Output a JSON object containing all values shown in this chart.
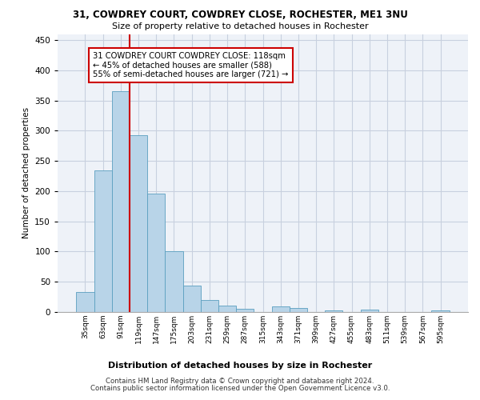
{
  "title1": "31, COWDREY COURT, COWDREY CLOSE, ROCHESTER, ME1 3NU",
  "title2": "Size of property relative to detached houses in Rochester",
  "xlabel": "Distribution of detached houses by size in Rochester",
  "ylabel": "Number of detached properties",
  "categories": [
    "35sqm",
    "63sqm",
    "91sqm",
    "119sqm",
    "147sqm",
    "175sqm",
    "203sqm",
    "231sqm",
    "259sqm",
    "287sqm",
    "315sqm",
    "343sqm",
    "371sqm",
    "399sqm",
    "427sqm",
    "455sqm",
    "483sqm",
    "511sqm",
    "539sqm",
    "567sqm",
    "595sqm"
  ],
  "values": [
    33,
    234,
    365,
    293,
    196,
    101,
    44,
    20,
    11,
    5,
    0,
    9,
    6,
    0,
    3,
    0,
    4,
    0,
    0,
    0,
    3
  ],
  "bar_color": "#b8d4e8",
  "bar_edge_color": "#5a9fc0",
  "bar_width": 1.0,
  "vline_x": 2.5,
  "vline_color": "#cc0000",
  "annotation_text": "31 COWDREY COURT COWDREY CLOSE: 118sqm\n← 45% of detached houses are smaller (588)\n55% of semi-detached houses are larger (721) →",
  "annotation_box_color": "#ffffff",
  "annotation_box_edge": "#cc0000",
  "ylim": [
    0,
    460
  ],
  "yticks": [
    0,
    50,
    100,
    150,
    200,
    250,
    300,
    350,
    400,
    450
  ],
  "footer1": "Contains HM Land Registry data © Crown copyright and database right 2024.",
  "footer2": "Contains public sector information licensed under the Open Government Licence v3.0.",
  "bg_color": "#eef2f8",
  "grid_color": "#c8d0df"
}
